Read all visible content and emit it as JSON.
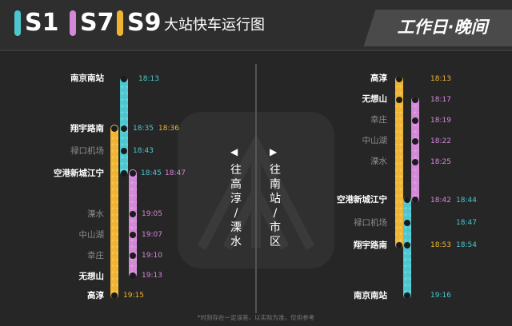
{
  "colors": {
    "s1": "#4cc7d0",
    "s7": "#d388d8",
    "s9": "#f0b431",
    "bg": "#262626"
  },
  "header": {
    "lines": [
      {
        "code": "S1",
        "color": "#4cc7d0"
      },
      {
        "code": "S7",
        "color": "#d388d8"
      },
      {
        "code": "S9",
        "color": "#f0b431"
      }
    ],
    "title": "大站快车运行图",
    "badge": "工作日·晚间"
  },
  "left_panel": {
    "direction_a": "往高淳/溧水",
    "stations": [
      "南京南站",
      "翔宇路南",
      "禄口机场",
      "空港新城江宁",
      "溧水",
      "中山湖",
      "幸庄",
      "无想山",
      "高淳"
    ],
    "times": {
      "s1_nanjingnan": "18:13",
      "s1_xiangyu": "18:35",
      "s9_xiangyu": "18:36",
      "s1_lukou": "18:43",
      "s1_konggang": "18:45",
      "s7_konggang": "18:47",
      "s7_lishui": "19:05",
      "s7_zhongshanhu": "19:07",
      "s7_xingzhuang": "19:10",
      "s7_wuxiangshan": "19:13",
      "s9_gaochun": "19:15"
    }
  },
  "right_panel": {
    "direction_b": "往南站/市区",
    "stations": [
      "高淳",
      "无想山",
      "幸庄",
      "中山湖",
      "溧水",
      "空港新城江宁",
      "禄口机场",
      "翔宇路南",
      "南京南站"
    ],
    "times": {
      "s9_gaochun": "18:13",
      "s7_wuxiangshan": "18:17",
      "s7_xingzhuang": "18:19",
      "s7_zhongshanhu": "18:22",
      "s7_lishui": "18:25",
      "s7_konggang": "18:42",
      "s1_konggang": "18:44",
      "s1_lukou": "18:47",
      "s9_xiangyu": "18:53",
      "s1_xiangyu": "18:54",
      "s1_nanjingnan": "19:16"
    }
  },
  "footnote": "*时刻存在一定误差，以实际为准，仅供参考"
}
